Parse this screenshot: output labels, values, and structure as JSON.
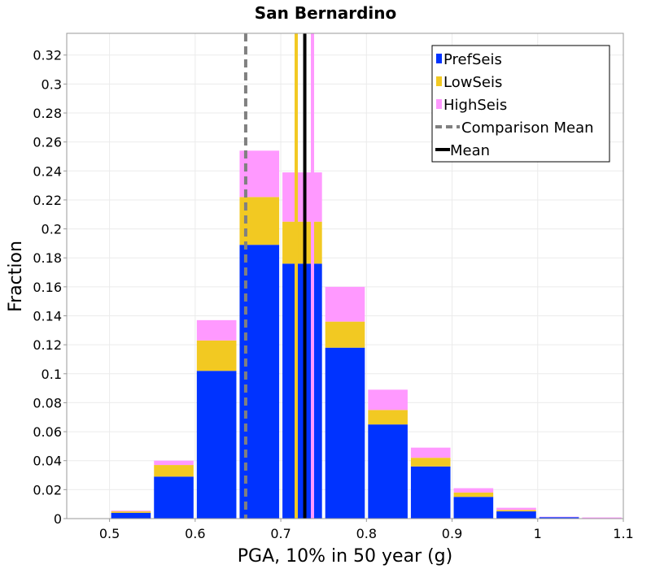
{
  "chart_data": {
    "type": "bar",
    "stacked": true,
    "title": "San Bernardino",
    "xlabel": "PGA, 10% in 50 year (g)",
    "ylabel": "Fraction",
    "xlim": [
      0.45,
      1.1
    ],
    "ylim": [
      0,
      0.335
    ],
    "xticks": [
      "0.5",
      "0.6",
      "0.7",
      "0.8",
      "0.9",
      "1",
      "1.1"
    ],
    "yticks": [
      "0",
      "0.02",
      "0.04",
      "0.06",
      "0.08",
      "0.1",
      "0.12",
      "0.14",
      "0.16",
      "0.18",
      "0.2",
      "0.22",
      "0.24",
      "0.26",
      "0.28",
      "0.3",
      "0.32"
    ],
    "grid": true,
    "legend_position": "top-right",
    "bin_centers": [
      0.475,
      0.525,
      0.575,
      0.625,
      0.675,
      0.725,
      0.775,
      0.825,
      0.875,
      0.925,
      0.975,
      1.025,
      1.075
    ],
    "bin_width": 0.05,
    "series": [
      {
        "name": "PrefSeis",
        "color": "#0033ff",
        "values": [
          0.0,
          0.004,
          0.029,
          0.102,
          0.189,
          0.176,
          0.118,
          0.065,
          0.036,
          0.015,
          0.005,
          0.001,
          0.0
        ]
      },
      {
        "name": "LowSeis",
        "color": "#f2c922",
        "values": [
          0.0,
          0.001,
          0.008,
          0.021,
          0.033,
          0.029,
          0.018,
          0.01,
          0.006,
          0.003,
          0.001,
          0.0,
          0.0
        ]
      },
      {
        "name": "HighSeis",
        "color": "#ff99ff",
        "values": [
          0.0,
          0.0005,
          0.003,
          0.014,
          0.032,
          0.034,
          0.024,
          0.014,
          0.007,
          0.003,
          0.0015,
          0.0003,
          0.0008
        ]
      }
    ],
    "vertical_lines": [
      {
        "name": "Comparison Mean",
        "x": 0.659,
        "color": "#808080",
        "style": "dashed"
      },
      {
        "name": "LowSeis mean",
        "x": 0.718,
        "color": "#f2c922",
        "style": "solid",
        "in_legend": false
      },
      {
        "name": "HighSeis mean",
        "x": 0.737,
        "color": "#ff99ff",
        "style": "solid",
        "in_legend": false
      },
      {
        "name": "Mean",
        "x": 0.728,
        "color": "#000000",
        "style": "solid"
      }
    ],
    "legend": [
      {
        "label": "PrefSeis",
        "kind": "box",
        "color": "#0033ff"
      },
      {
        "label": "LowSeis",
        "kind": "box",
        "color": "#f2c922"
      },
      {
        "label": "HighSeis",
        "kind": "box",
        "color": "#ff99ff"
      },
      {
        "label": "Comparison Mean",
        "kind": "dash",
        "color": "#808080"
      },
      {
        "label": "Mean",
        "kind": "line",
        "color": "#000000"
      }
    ]
  }
}
